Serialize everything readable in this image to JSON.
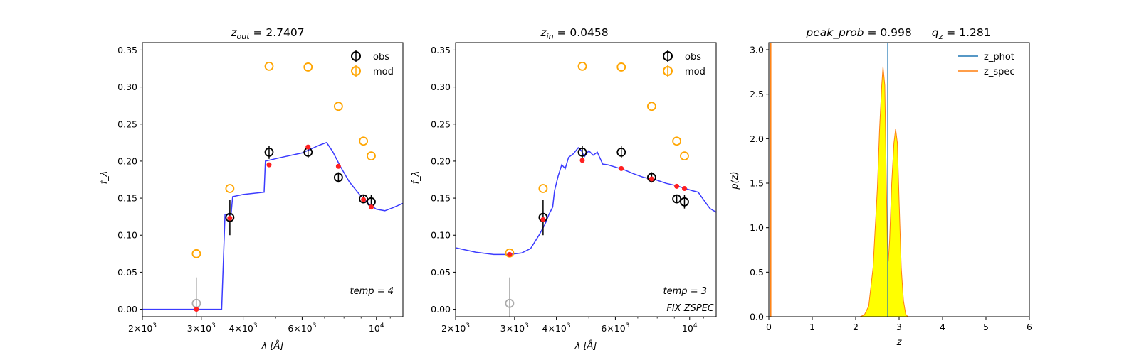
{
  "chart_data": [
    {
      "type": "scatter",
      "title": "z_out = 2.7407",
      "title_parts": {
        "sym": "z",
        "sub": "out",
        "rest": " = 2.7407"
      },
      "xlabel": "λ [Å]",
      "ylabel": "f_λ",
      "x_scale": "log",
      "xlim": [
        2000,
        12000
      ],
      "ylim": [
        -0.01,
        0.36
      ],
      "x_ticks": [
        {
          "v": 2000,
          "m": "2",
          "e": "3"
        },
        {
          "v": 3000,
          "m": "3",
          "e": "3"
        },
        {
          "v": 4000,
          "m": "4",
          "e": "3"
        },
        {
          "v": 6000,
          "m": "6",
          "e": "3"
        },
        {
          "v": 10000,
          "m": "",
          "e": "4"
        }
      ],
      "y_ticks": [
        "0.00",
        "0.05",
        "0.10",
        "0.15",
        "0.20",
        "0.25",
        "0.30",
        "0.35"
      ],
      "legend": {
        "position": "top-right",
        "entries": [
          "obs",
          "mod"
        ]
      },
      "annotations": [
        "temp = 4"
      ],
      "obs": [
        {
          "x": 2900,
          "y": 0.008,
          "err": 0.035,
          "color": "#aaaaaa"
        },
        {
          "x": 3650,
          "y": 0.124,
          "err": 0.024,
          "color": "#000000"
        },
        {
          "x": 4780,
          "y": 0.212,
          "err": 0.009,
          "color": "#000000"
        },
        {
          "x": 6250,
          "y": 0.212,
          "err": 0.008,
          "color": "#000000"
        },
        {
          "x": 7700,
          "y": 0.178,
          "err": 0.007,
          "color": "#000000"
        },
        {
          "x": 9150,
          "y": 0.149,
          "err": 0.005,
          "color": "#000000"
        },
        {
          "x": 9650,
          "y": 0.145,
          "err": 0.009,
          "color": "#000000"
        }
      ],
      "mod": [
        {
          "x": 2900,
          "y": 0.075
        },
        {
          "x": 3650,
          "y": 0.163
        },
        {
          "x": 4780,
          "y": 0.328
        },
        {
          "x": 6250,
          "y": 0.327
        },
        {
          "x": 7700,
          "y": 0.274
        },
        {
          "x": 9150,
          "y": 0.227
        },
        {
          "x": 9650,
          "y": 0.207
        }
      ],
      "model_points": [
        {
          "x": 2900,
          "y": 0.0
        },
        {
          "x": 3650,
          "y": 0.123
        },
        {
          "x": 4780,
          "y": 0.195
        },
        {
          "x": 6250,
          "y": 0.219
        },
        {
          "x": 7700,
          "y": 0.193
        },
        {
          "x": 9150,
          "y": 0.148
        },
        {
          "x": 9650,
          "y": 0.138
        }
      ],
      "sed": [
        [
          2000,
          0.0
        ],
        [
          3450,
          0.0
        ],
        [
          3530,
          0.128
        ],
        [
          3680,
          0.128
        ],
        [
          3720,
          0.152
        ],
        [
          4000,
          0.155
        ],
        [
          4620,
          0.158
        ],
        [
          4660,
          0.2
        ],
        [
          5200,
          0.205
        ],
        [
          6000,
          0.211
        ],
        [
          6800,
          0.222
        ],
        [
          7100,
          0.225
        ],
        [
          7400,
          0.213
        ],
        [
          7800,
          0.193
        ],
        [
          8300,
          0.172
        ],
        [
          8900,
          0.155
        ],
        [
          9500,
          0.142
        ],
        [
          10000,
          0.135
        ],
        [
          10600,
          0.133
        ],
        [
          11200,
          0.137
        ],
        [
          12000,
          0.143
        ]
      ]
    },
    {
      "type": "scatter",
      "title": "z_in = 0.0458",
      "title_parts": {
        "sym": "z",
        "sub": "in",
        "rest": " = 0.0458"
      },
      "xlabel": "λ [Å]",
      "ylabel": "f_λ",
      "x_scale": "log",
      "xlim": [
        2000,
        12000
      ],
      "ylim": [
        -0.01,
        0.36
      ],
      "x_ticks": [
        {
          "v": 2000,
          "m": "2",
          "e": "3"
        },
        {
          "v": 3000,
          "m": "3",
          "e": "3"
        },
        {
          "v": 4000,
          "m": "4",
          "e": "3"
        },
        {
          "v": 6000,
          "m": "6",
          "e": "3"
        },
        {
          "v": 10000,
          "m": "",
          "e": "4"
        }
      ],
      "y_ticks": [
        "0.00",
        "0.05",
        "0.10",
        "0.15",
        "0.20",
        "0.25",
        "0.30",
        "0.35"
      ],
      "legend": {
        "position": "top-right",
        "entries": [
          "obs",
          "mod"
        ]
      },
      "annotations": [
        "temp = 3",
        "FIX ZSPEC"
      ],
      "obs": [
        {
          "x": 2900,
          "y": 0.008,
          "err": 0.035,
          "color": "#aaaaaa"
        },
        {
          "x": 3650,
          "y": 0.124,
          "err": 0.024,
          "color": "#000000"
        },
        {
          "x": 4780,
          "y": 0.212,
          "err": 0.009,
          "color": "#000000"
        },
        {
          "x": 6250,
          "y": 0.212,
          "err": 0.008,
          "color": "#000000"
        },
        {
          "x": 7700,
          "y": 0.178,
          "err": 0.007,
          "color": "#000000"
        },
        {
          "x": 9150,
          "y": 0.149,
          "err": 0.005,
          "color": "#000000"
        },
        {
          "x": 9650,
          "y": 0.145,
          "err": 0.009,
          "color": "#000000"
        }
      ],
      "mod": [
        {
          "x": 2900,
          "y": 0.076
        },
        {
          "x": 3650,
          "y": 0.163
        },
        {
          "x": 4780,
          "y": 0.328
        },
        {
          "x": 6250,
          "y": 0.327
        },
        {
          "x": 7700,
          "y": 0.274
        },
        {
          "x": 9150,
          "y": 0.227
        },
        {
          "x": 9650,
          "y": 0.207
        }
      ],
      "model_points": [
        {
          "x": 2900,
          "y": 0.074
        },
        {
          "x": 3650,
          "y": 0.121
        },
        {
          "x": 4780,
          "y": 0.201
        },
        {
          "x": 6250,
          "y": 0.19
        },
        {
          "x": 7700,
          "y": 0.176
        },
        {
          "x": 9150,
          "y": 0.166
        },
        {
          "x": 9650,
          "y": 0.163
        }
      ],
      "sed": [
        [
          2000,
          0.083
        ],
        [
          2300,
          0.077
        ],
        [
          2600,
          0.074
        ],
        [
          2900,
          0.074
        ],
        [
          3150,
          0.076
        ],
        [
          3350,
          0.082
        ],
        [
          3550,
          0.1
        ],
        [
          3700,
          0.115
        ],
        [
          3800,
          0.128
        ],
        [
          3900,
          0.138
        ],
        [
          3950,
          0.16
        ],
        [
          4050,
          0.18
        ],
        [
          4150,
          0.195
        ],
        [
          4250,
          0.19
        ],
        [
          4350,
          0.205
        ],
        [
          4500,
          0.21
        ],
        [
          4650,
          0.218
        ],
        [
          4750,
          0.214
        ],
        [
          4850,
          0.206
        ],
        [
          5000,
          0.214
        ],
        [
          5150,
          0.208
        ],
        [
          5300,
          0.212
        ],
        [
          5500,
          0.196
        ],
        [
          5700,
          0.195
        ],
        [
          6000,
          0.192
        ],
        [
          6400,
          0.188
        ],
        [
          6800,
          0.183
        ],
        [
          7300,
          0.178
        ],
        [
          7900,
          0.175
        ],
        [
          8500,
          0.17
        ],
        [
          9100,
          0.167
        ],
        [
          9700,
          0.163
        ],
        [
          10200,
          0.16
        ],
        [
          10600,
          0.158
        ],
        [
          11000,
          0.148
        ],
        [
          11500,
          0.136
        ],
        [
          12000,
          0.131
        ]
      ]
    },
    {
      "type": "area",
      "title": "peak_prob = 0.998     q_z = 1.281",
      "title_parts": {
        "left": "peak_prob",
        "left_val": " = 0.998",
        "right_sym": "q",
        "right_sub": "z",
        "right_val": " = 1.281"
      },
      "xlabel": "z",
      "ylabel": "p(z)",
      "xlim": [
        0,
        6
      ],
      "ylim": [
        0,
        3.08
      ],
      "x_ticks": [
        "0",
        "1",
        "2",
        "3",
        "4",
        "5",
        "6"
      ],
      "y_ticks": [
        "0.0",
        "0.5",
        "1.0",
        "1.5",
        "2.0",
        "2.5",
        "3.0"
      ],
      "legend": {
        "position": "top-right",
        "entries": [
          "z_phot",
          "z_spec"
        ]
      },
      "colors": {
        "z_phot": "#1f77b4",
        "z_spec": "#ff7f0e",
        "fill": "#ffff00"
      },
      "z_phot": 2.74,
      "z_spec": 0.0458,
      "pz": [
        [
          0.0,
          0.0
        ],
        [
          2.1,
          0.0
        ],
        [
          2.2,
          0.02
        ],
        [
          2.3,
          0.12
        ],
        [
          2.4,
          0.55
        ],
        [
          2.5,
          1.45
        ],
        [
          2.55,
          2.1
        ],
        [
          2.6,
          2.6
        ],
        [
          2.63,
          2.81
        ],
        [
          2.67,
          2.6
        ],
        [
          2.7,
          1.7
        ],
        [
          2.73,
          0.8
        ],
        [
          2.75,
          0.62
        ],
        [
          2.78,
          0.85
        ],
        [
          2.83,
          1.5
        ],
        [
          2.88,
          1.95
        ],
        [
          2.92,
          2.11
        ],
        [
          2.96,
          1.95
        ],
        [
          3.0,
          1.3
        ],
        [
          3.05,
          0.55
        ],
        [
          3.1,
          0.18
        ],
        [
          3.15,
          0.03
        ],
        [
          3.2,
          0.0
        ],
        [
          5.0,
          0.0
        ]
      ]
    }
  ]
}
